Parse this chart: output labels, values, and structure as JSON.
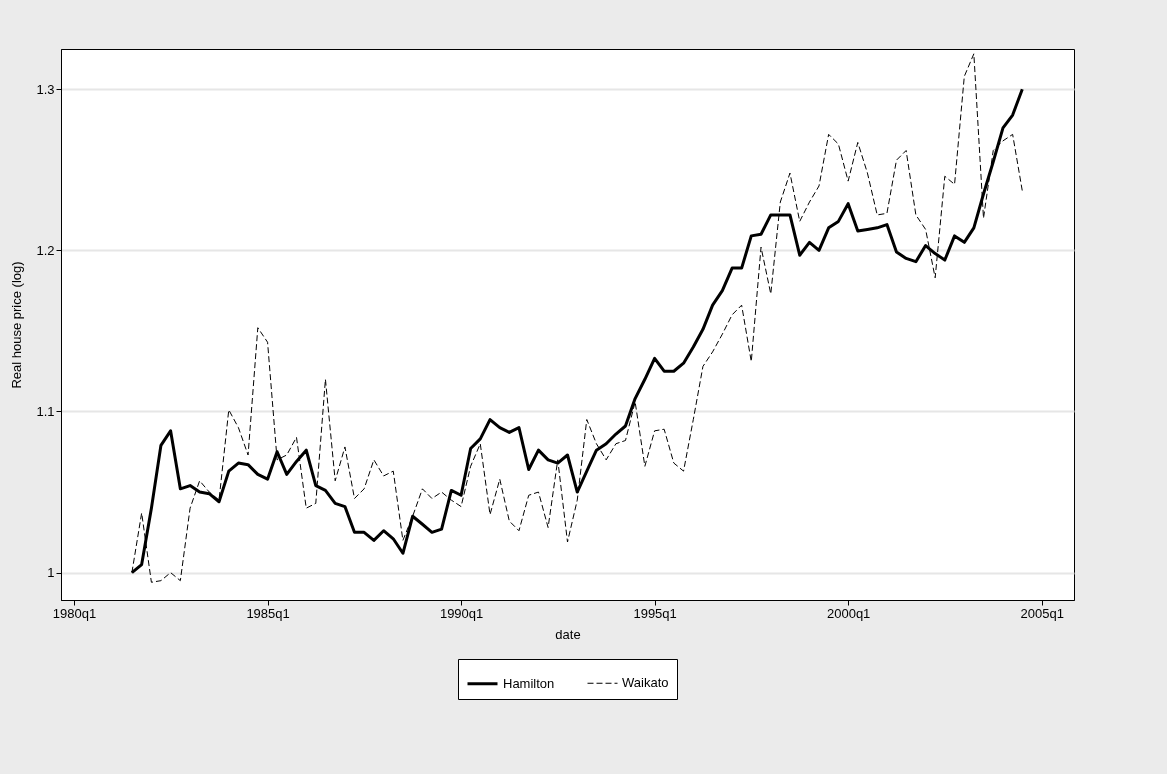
{
  "chart_data": {
    "type": "line",
    "xlabel": "date",
    "ylabel": "Real house price (log)",
    "x": [
      "1981-07",
      "1981-10",
      "1982-01",
      "1982-04",
      "1982-07",
      "1982-10",
      "1983-01",
      "1983-04",
      "1983-07",
      "1983-10",
      "1984-01",
      "1984-04",
      "1984-07",
      "1984-10",
      "1985-01",
      "1985-04",
      "1985-07",
      "1985-10",
      "1986-01",
      "1986-04",
      "1986-07",
      "1986-10",
      "1987-01",
      "1987-04",
      "1987-07",
      "1987-10",
      "1988-01",
      "1988-04",
      "1988-07",
      "1988-10",
      "1989-01",
      "1989-04",
      "1989-07",
      "1989-10",
      "1990-01",
      "1990-04",
      "1990-07",
      "1990-10",
      "1991-01",
      "1991-04",
      "1991-07",
      "1991-10",
      "1992-01",
      "1992-04",
      "1992-07",
      "1992-10",
      "1993-01",
      "1993-04",
      "1993-07",
      "1993-10",
      "1994-01",
      "1994-04",
      "1994-07",
      "1994-10",
      "1995-01",
      "1995-04",
      "1995-07",
      "1995-10",
      "1996-01",
      "1996-04",
      "1996-07",
      "1996-10",
      "1997-01",
      "1997-04",
      "1997-07",
      "1997-10",
      "1998-01",
      "1998-04",
      "1998-07",
      "1998-10",
      "1999-01",
      "1999-04",
      "1999-07",
      "1999-10",
      "2000-01",
      "2000-04",
      "2000-07",
      "2000-10",
      "2001-01",
      "2001-04",
      "2001-07",
      "2001-10",
      "2002-01",
      "2002-04",
      "2002-07",
      "2002-10",
      "2003-01",
      "2003-04",
      "2003-07",
      "2003-10",
      "2004-01",
      "2004-04",
      "2004-07"
    ],
    "series": [
      {
        "name": "Hamilton",
        "color": "#000000",
        "line_style": "solid",
        "values": [
          1.0,
          1.005,
          1.04,
          1.079,
          1.088,
          1.052,
          1.054,
          1.05,
          1.049,
          1.044,
          1.063,
          1.068,
          1.067,
          1.061,
          1.058,
          1.075,
          1.061,
          1.069,
          1.076,
          1.054,
          1.051,
          1.043,
          1.041,
          1.025,
          1.025,
          1.02,
          1.026,
          1.021,
          1.012,
          1.035,
          1.03,
          1.025,
          1.027,
          1.051,
          1.048,
          1.077,
          1.083,
          1.095,
          1.09,
          1.087,
          1.09,
          1.064,
          1.076,
          1.07,
          1.068,
          1.073,
          1.05,
          1.063,
          1.076,
          1.08,
          1.086,
          1.091,
          1.108,
          1.12,
          1.133,
          1.125,
          1.125,
          1.13,
          1.14,
          1.151,
          1.166,
          1.175,
          1.189,
          1.189,
          1.209,
          1.21,
          1.222,
          1.222,
          1.222,
          1.197,
          1.205,
          1.2,
          1.214,
          1.218,
          1.229,
          1.212,
          1.213,
          1.214,
          1.216,
          1.199,
          1.195,
          1.193,
          1.203,
          1.198,
          1.194,
          1.209,
          1.205,
          1.214,
          1.235,
          1.255,
          1.276,
          1.284,
          1.3
        ]
      },
      {
        "name": "Waikato",
        "color": "#000000",
        "line_style": "dashed",
        "values": [
          1.0,
          1.037,
          0.994,
          0.995,
          1.0,
          0.995,
          1.04,
          1.057,
          1.05,
          1.045,
          1.101,
          1.09,
          1.073,
          1.152,
          1.143,
          1.07,
          1.073,
          1.084,
          1.04,
          1.043,
          1.12,
          1.057,
          1.078,
          1.046,
          1.052,
          1.07,
          1.06,
          1.063,
          1.02,
          1.035,
          1.052,
          1.046,
          1.05,
          1.045,
          1.041,
          1.066,
          1.08,
          1.036,
          1.058,
          1.032,
          1.026,
          1.048,
          1.05,
          1.028,
          1.07,
          1.019,
          1.045,
          1.095,
          1.08,
          1.07,
          1.08,
          1.082,
          1.106,
          1.066,
          1.088,
          1.089,
          1.068,
          1.063,
          1.095,
          1.128,
          1.137,
          1.148,
          1.16,
          1.166,
          1.131,
          1.202,
          1.173,
          1.23,
          1.248,
          1.218,
          1.23,
          1.24,
          1.272,
          1.266,
          1.243,
          1.267,
          1.248,
          1.222,
          1.223,
          1.256,
          1.262,
          1.222,
          1.213,
          1.183,
          1.246,
          1.241,
          1.308,
          1.322,
          1.22,
          1.262,
          1.268,
          1.272,
          1.237
        ]
      }
    ],
    "xlim": [
      "1979-09",
      "2005-11"
    ],
    "xticks": [
      {
        "value": "1980-01",
        "label": "1980q1"
      },
      {
        "value": "1985-01",
        "label": "1985q1"
      },
      {
        "value": "1990-01",
        "label": "1990q1"
      },
      {
        "value": "1995-01",
        "label": "1995q1"
      },
      {
        "value": "2000-01",
        "label": "2000q1"
      },
      {
        "value": "2005-01",
        "label": "2005q1"
      }
    ],
    "ylim": [
      0.983,
      1.325
    ],
    "yticks": [
      1,
      1.1,
      1.2,
      1.3
    ],
    "grid": "y",
    "legend": "bottom"
  }
}
